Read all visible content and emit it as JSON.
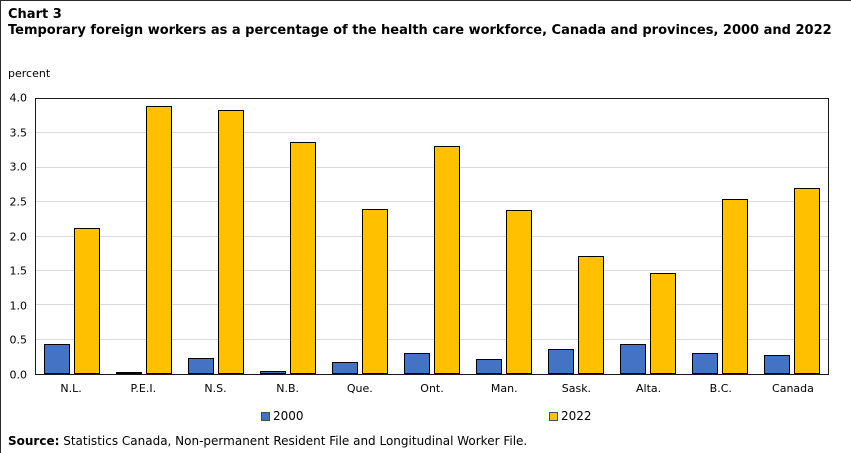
{
  "header": {
    "chart_number": "Chart 3",
    "title": "Temporary foreign workers as a percentage of the health care workforce, Canada and provinces, 2000 and 2022",
    "axis_unit_label": "percent"
  },
  "chart_data": {
    "type": "bar",
    "title": "Temporary foreign workers as a percentage of the health care workforce, Canada and provinces, 2000 and 2022",
    "xlabel": "",
    "ylabel": "percent",
    "ylim": [
      0,
      4
    ],
    "ytick_step": 0.5,
    "ytick_labels": [
      "0.0",
      "0.5",
      "1.0",
      "1.5",
      "2.0",
      "2.5",
      "3.0",
      "3.5",
      "4.0"
    ],
    "grid": true,
    "legend_position": "bottom",
    "categories": [
      "N.L.",
      "P.E.I.",
      "N.S.",
      "N.B.",
      "Que.",
      "Ont.",
      "Man.",
      "Sask.",
      "Alta.",
      "B.C.",
      "Canada"
    ],
    "series": [
      {
        "name": "2000",
        "color": "#4472C4",
        "values": [
          0.44,
          0.03,
          0.24,
          0.04,
          0.17,
          0.3,
          0.22,
          0.37,
          0.43,
          0.3,
          0.27
        ]
      },
      {
        "name": "2022",
        "color": "#FFC000",
        "values": [
          2.12,
          3.9,
          3.84,
          3.37,
          2.4,
          3.31,
          2.38,
          1.71,
          1.47,
          2.54,
          2.7
        ]
      }
    ]
  },
  "legend": {
    "items": [
      {
        "label": "2000",
        "color": "#4472C4"
      },
      {
        "label": "2022",
        "color": "#FFC000"
      }
    ]
  },
  "source": {
    "label": "Source:",
    "text": " Statistics Canada, Non-permanent Resident File and Longitudinal Worker File."
  },
  "colors": {
    "series_2000": "#4472C4",
    "series_2022": "#FFC000",
    "gridline": "#D9D9D9",
    "plot_border": "#1A1A1A"
  }
}
